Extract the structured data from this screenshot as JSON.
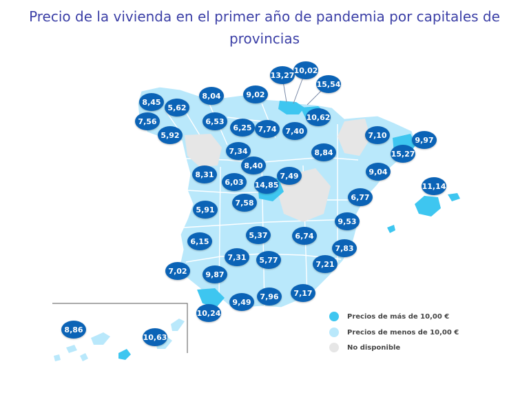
{
  "title_line1": "Precio de la vivienda en el primer año de pandemia por capitales de",
  "title_line2": "provincias",
  "colors": {
    "high": "#3ec6f0",
    "low": "#b9e8fb",
    "na": "#e6e6e6",
    "badge": "#0b63b6",
    "title": "#3b3fa6"
  },
  "legend": [
    {
      "label": "Precios de más de 10,00 €",
      "color": "#3ec6f0"
    },
    {
      "label": "Precios de menos de 10,00 €",
      "color": "#b9e8fb"
    },
    {
      "label": "No disponible",
      "color": "#e6e6e6"
    }
  ],
  "prices": [
    {
      "value": "8,45"
    },
    {
      "value": "5,62"
    },
    {
      "value": "7,56"
    },
    {
      "value": "5,92"
    },
    {
      "value": "8,04"
    },
    {
      "value": "6,53"
    },
    {
      "value": "9,02"
    },
    {
      "value": "13,27"
    },
    {
      "value": "10,02"
    },
    {
      "value": "15,54"
    },
    {
      "value": "10,62"
    },
    {
      "value": "6,25"
    },
    {
      "value": "7,74"
    },
    {
      "value": "7,40"
    },
    {
      "value": "7,10"
    },
    {
      "value": "9,97"
    },
    {
      "value": "15,27"
    },
    {
      "value": "7,34"
    },
    {
      "value": "8,84"
    },
    {
      "value": "8,40"
    },
    {
      "value": "9,04"
    },
    {
      "value": "8,31"
    },
    {
      "value": "6,03"
    },
    {
      "value": "14,85"
    },
    {
      "value": "7,49"
    },
    {
      "value": "11,14"
    },
    {
      "value": "7,58"
    },
    {
      "value": "6,77"
    },
    {
      "value": "5,91"
    },
    {
      "value": "9,53"
    },
    {
      "value": "5,37"
    },
    {
      "value": "6,74"
    },
    {
      "value": "6,15"
    },
    {
      "value": "7,83"
    },
    {
      "value": "7,31"
    },
    {
      "value": "5,77"
    },
    {
      "value": "7,21"
    },
    {
      "value": "7,02"
    },
    {
      "value": "9,87"
    },
    {
      "value": "7,96"
    },
    {
      "value": "7,17"
    },
    {
      "value": "9,49"
    },
    {
      "value": "10,24"
    },
    {
      "value": "8,86"
    },
    {
      "value": "10,63"
    }
  ]
}
